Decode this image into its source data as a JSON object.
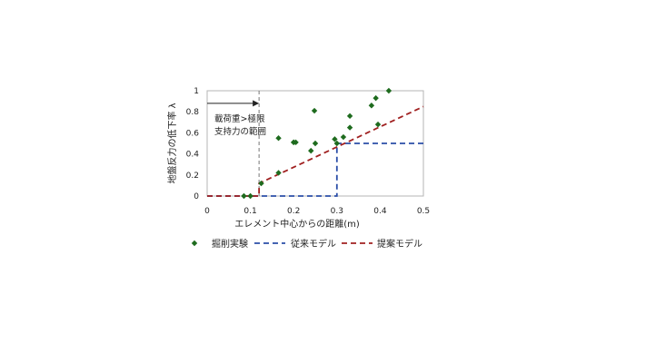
{
  "chart_data": {
    "type": "scatter",
    "xlabel": "エレメント中心からの距離(m)",
    "ylabel": "地盤反力の低下率 λ",
    "xlim": [
      0,
      0.5
    ],
    "ylim": [
      0,
      1
    ],
    "x_ticks": [
      "0",
      "0.1",
      "0.2",
      "0.3",
      "0.4",
      "0.5"
    ],
    "y_ticks": [
      "0",
      "0.2",
      "0.4",
      "0.6",
      "0.8",
      "1"
    ],
    "grid": false,
    "legend_position": "bottom",
    "annotation": {
      "line1": "載荷重>極限",
      "line2": "支持力の範囲",
      "boundary_x": 0.12,
      "arrow_y": 0.88
    },
    "series": [
      {
        "name": "掘削実験",
        "kind": "points",
        "color": "#1e6b1e",
        "points": [
          [
            0.085,
            0.0
          ],
          [
            0.1,
            0.0
          ],
          [
            0.125,
            0.12
          ],
          [
            0.165,
            0.22
          ],
          [
            0.165,
            0.55
          ],
          [
            0.2,
            0.51
          ],
          [
            0.2,
            0.51
          ],
          [
            0.205,
            0.51
          ],
          [
            0.24,
            0.43
          ],
          [
            0.25,
            0.5
          ],
          [
            0.248,
            0.81
          ],
          [
            0.295,
            0.54
          ],
          [
            0.3,
            0.5
          ],
          [
            0.315,
            0.56
          ],
          [
            0.33,
            0.65
          ],
          [
            0.33,
            0.76
          ],
          [
            0.38,
            0.86
          ],
          [
            0.39,
            0.93
          ],
          [
            0.395,
            0.68
          ],
          [
            0.42,
            1.0
          ]
        ]
      },
      {
        "name": "従来モデル",
        "kind": "line",
        "color": "#2b4ea8",
        "dash": "6,4",
        "points": [
          [
            0,
            0
          ],
          [
            0.3,
            0
          ],
          [
            0.3,
            0.5
          ],
          [
            0.5,
            0.5
          ]
        ]
      },
      {
        "name": "提案モデル",
        "kind": "line",
        "color": "#a02020",
        "dash": "6,4",
        "points": [
          [
            0,
            0
          ],
          [
            0.12,
            0
          ],
          [
            0.12,
            0.12
          ],
          [
            0.5,
            0.85
          ]
        ]
      }
    ]
  }
}
